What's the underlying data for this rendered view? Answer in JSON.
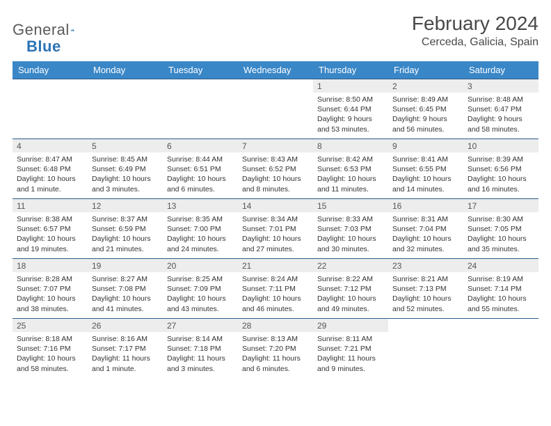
{
  "brand": {
    "part1": "General",
    "part2": "Blue"
  },
  "title": "February 2024",
  "location": "Cerceda, Galicia, Spain",
  "colors": {
    "header_bg": "#3a87c7",
    "header_fg": "#ffffff",
    "daynum_bg": "#ededed",
    "rule": "#2a5a8a",
    "brand_blue": "#2a72b5",
    "text": "#333333"
  },
  "weekdays": [
    "Sunday",
    "Monday",
    "Tuesday",
    "Wednesday",
    "Thursday",
    "Friday",
    "Saturday"
  ],
  "weeks": [
    [
      null,
      null,
      null,
      null,
      {
        "n": "1",
        "sunrise": "8:50 AM",
        "sunset": "6:44 PM",
        "day": "9 hours and 53 minutes."
      },
      {
        "n": "2",
        "sunrise": "8:49 AM",
        "sunset": "6:45 PM",
        "day": "9 hours and 56 minutes."
      },
      {
        "n": "3",
        "sunrise": "8:48 AM",
        "sunset": "6:47 PM",
        "day": "9 hours and 58 minutes."
      }
    ],
    [
      {
        "n": "4",
        "sunrise": "8:47 AM",
        "sunset": "6:48 PM",
        "day": "10 hours and 1 minute."
      },
      {
        "n": "5",
        "sunrise": "8:45 AM",
        "sunset": "6:49 PM",
        "day": "10 hours and 3 minutes."
      },
      {
        "n": "6",
        "sunrise": "8:44 AM",
        "sunset": "6:51 PM",
        "day": "10 hours and 6 minutes."
      },
      {
        "n": "7",
        "sunrise": "8:43 AM",
        "sunset": "6:52 PM",
        "day": "10 hours and 8 minutes."
      },
      {
        "n": "8",
        "sunrise": "8:42 AM",
        "sunset": "6:53 PM",
        "day": "10 hours and 11 minutes."
      },
      {
        "n": "9",
        "sunrise": "8:41 AM",
        "sunset": "6:55 PM",
        "day": "10 hours and 14 minutes."
      },
      {
        "n": "10",
        "sunrise": "8:39 AM",
        "sunset": "6:56 PM",
        "day": "10 hours and 16 minutes."
      }
    ],
    [
      {
        "n": "11",
        "sunrise": "8:38 AM",
        "sunset": "6:57 PM",
        "day": "10 hours and 19 minutes."
      },
      {
        "n": "12",
        "sunrise": "8:37 AM",
        "sunset": "6:59 PM",
        "day": "10 hours and 21 minutes."
      },
      {
        "n": "13",
        "sunrise": "8:35 AM",
        "sunset": "7:00 PM",
        "day": "10 hours and 24 minutes."
      },
      {
        "n": "14",
        "sunrise": "8:34 AM",
        "sunset": "7:01 PM",
        "day": "10 hours and 27 minutes."
      },
      {
        "n": "15",
        "sunrise": "8:33 AM",
        "sunset": "7:03 PM",
        "day": "10 hours and 30 minutes."
      },
      {
        "n": "16",
        "sunrise": "8:31 AM",
        "sunset": "7:04 PM",
        "day": "10 hours and 32 minutes."
      },
      {
        "n": "17",
        "sunrise": "8:30 AM",
        "sunset": "7:05 PM",
        "day": "10 hours and 35 minutes."
      }
    ],
    [
      {
        "n": "18",
        "sunrise": "8:28 AM",
        "sunset": "7:07 PM",
        "day": "10 hours and 38 minutes."
      },
      {
        "n": "19",
        "sunrise": "8:27 AM",
        "sunset": "7:08 PM",
        "day": "10 hours and 41 minutes."
      },
      {
        "n": "20",
        "sunrise": "8:25 AM",
        "sunset": "7:09 PM",
        "day": "10 hours and 43 minutes."
      },
      {
        "n": "21",
        "sunrise": "8:24 AM",
        "sunset": "7:11 PM",
        "day": "10 hours and 46 minutes."
      },
      {
        "n": "22",
        "sunrise": "8:22 AM",
        "sunset": "7:12 PM",
        "day": "10 hours and 49 minutes."
      },
      {
        "n": "23",
        "sunrise": "8:21 AM",
        "sunset": "7:13 PM",
        "day": "10 hours and 52 minutes."
      },
      {
        "n": "24",
        "sunrise": "8:19 AM",
        "sunset": "7:14 PM",
        "day": "10 hours and 55 minutes."
      }
    ],
    [
      {
        "n": "25",
        "sunrise": "8:18 AM",
        "sunset": "7:16 PM",
        "day": "10 hours and 58 minutes."
      },
      {
        "n": "26",
        "sunrise": "8:16 AM",
        "sunset": "7:17 PM",
        "day": "11 hours and 1 minute."
      },
      {
        "n": "27",
        "sunrise": "8:14 AM",
        "sunset": "7:18 PM",
        "day": "11 hours and 3 minutes."
      },
      {
        "n": "28",
        "sunrise": "8:13 AM",
        "sunset": "7:20 PM",
        "day": "11 hours and 6 minutes."
      },
      {
        "n": "29",
        "sunrise": "8:11 AM",
        "sunset": "7:21 PM",
        "day": "11 hours and 9 minutes."
      },
      null,
      null
    ]
  ],
  "labels": {
    "sunrise": "Sunrise: ",
    "sunset": "Sunset: ",
    "daylight": "Daylight: "
  }
}
